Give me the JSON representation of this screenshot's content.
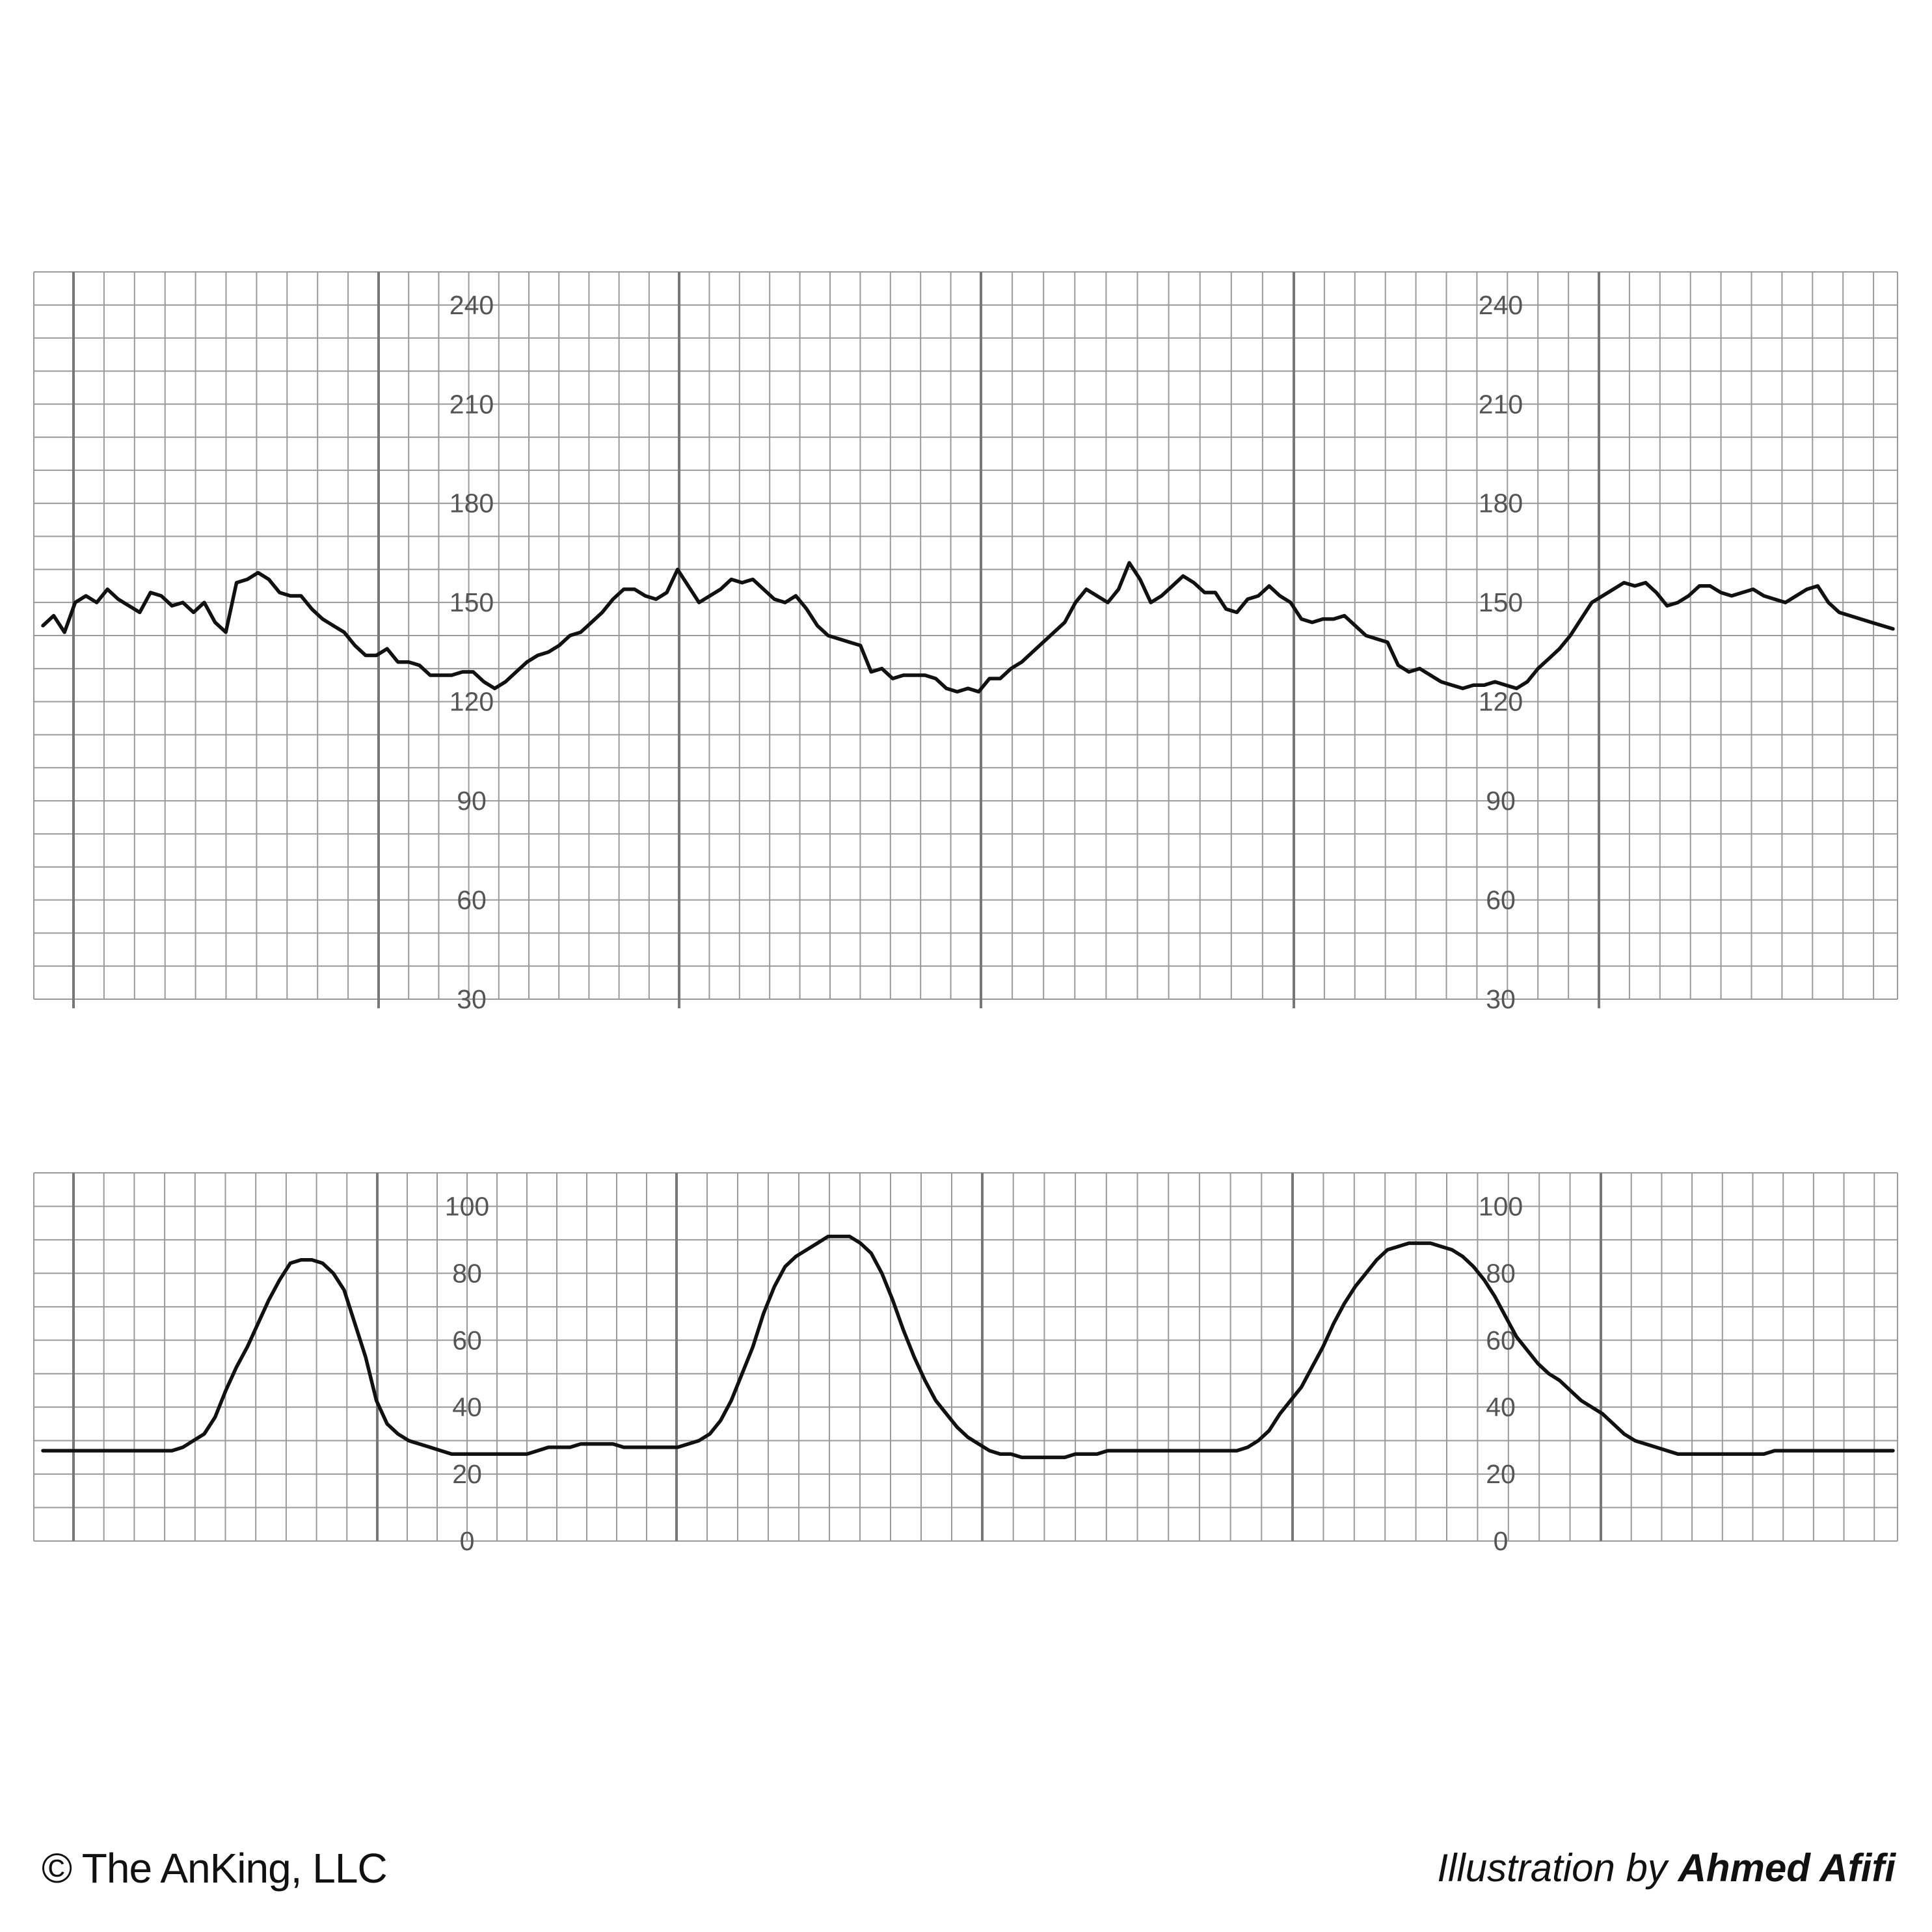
{
  "chart_data": [
    {
      "type": "line",
      "title": "",
      "xlabel": "",
      "ylabel": "",
      "ylim": [
        30,
        250
      ],
      "yticks": [
        30,
        60,
        90,
        120,
        150,
        180,
        210,
        240
      ],
      "grid": true,
      "series": [
        {
          "x": [
            0,
            1,
            2,
            3,
            4,
            5,
            6,
            7,
            8,
            9,
            10,
            11,
            12,
            13,
            14,
            15,
            16,
            17,
            18,
            19,
            20,
            21,
            22,
            23,
            24,
            25,
            26,
            27,
            28,
            29,
            30,
            31,
            32,
            33,
            34,
            35,
            36,
            37,
            38,
            39,
            40,
            41,
            42,
            43,
            44,
            45,
            46,
            47,
            48,
            49,
            50,
            51,
            52,
            53,
            54,
            55,
            56,
            57,
            58,
            59,
            60,
            61,
            62,
            63,
            64,
            65,
            66,
            67,
            68,
            69,
            70,
            71,
            72,
            73,
            74,
            75,
            76,
            77,
            78,
            79,
            80,
            81,
            82,
            83,
            84,
            85,
            86,
            87,
            88,
            89,
            90,
            91,
            92,
            93,
            94,
            95,
            96,
            97,
            98,
            99,
            100,
            101,
            102,
            103,
            104,
            105,
            106,
            107,
            108,
            109,
            110,
            111,
            112,
            113,
            114,
            115,
            116,
            117,
            118,
            119,
            120,
            121,
            122,
            123,
            124,
            125,
            126,
            127,
            128,
            129,
            130,
            131,
            132,
            133,
            134,
            135,
            136,
            137,
            138,
            139,
            140,
            141,
            142,
            143,
            144,
            145,
            146,
            147,
            148,
            149,
            150,
            151,
            152,
            153,
            154,
            155,
            156,
            157,
            158,
            159,
            160,
            161,
            162,
            163,
            164,
            165,
            166,
            167,
            168,
            169,
            170,
            171,
            172
          ],
          "values": [
            143,
            146,
            141,
            150,
            152,
            150,
            154,
            151,
            149,
            147,
            153,
            152,
            149,
            150,
            147,
            150,
            144,
            141,
            156,
            157,
            159,
            157,
            153,
            152,
            152,
            148,
            145,
            143,
            141,
            137,
            134,
            134,
            136,
            132,
            132,
            131,
            128,
            128,
            128,
            129,
            129,
            126,
            124,
            126,
            129,
            132,
            134,
            135,
            137,
            140,
            141,
            144,
            147,
            151,
            154,
            154,
            152,
            151,
            153,
            160,
            155,
            150,
            152,
            154,
            157,
            156,
            157,
            154,
            151,
            150,
            152,
            148,
            143,
            140,
            139,
            138,
            137,
            129,
            130,
            127,
            128,
            128,
            128,
            127,
            124,
            123,
            124,
            123,
            127,
            127,
            130,
            132,
            135,
            138,
            141,
            144,
            150,
            154,
            152,
            150,
            154,
            162,
            157,
            150,
            152,
            155,
            158,
            156,
            153,
            153,
            148,
            147,
            151,
            152,
            155,
            152,
            150,
            145,
            144,
            145,
            145,
            146,
            143,
            140,
            139,
            138,
            131,
            129,
            130,
            128,
            126,
            125,
            124,
            125,
            125,
            126,
            125,
            124,
            126,
            130,
            133,
            136,
            140,
            145,
            150,
            152,
            154,
            156,
            155,
            156,
            153,
            149,
            150,
            152,
            155,
            155,
            153,
            152,
            153,
            154,
            152,
            151,
            150,
            152,
            154,
            155,
            150,
            147,
            146,
            145,
            144,
            143,
            142
          ]
        }
      ]
    },
    {
      "type": "line",
      "title": "",
      "xlabel": "",
      "ylabel": "",
      "ylim": [
        0,
        110
      ],
      "yticks": [
        0,
        20,
        40,
        60,
        80,
        100
      ],
      "grid": true,
      "series": [
        {
          "x": [
            0,
            1,
            2,
            3,
            4,
            5,
            6,
            7,
            8,
            9,
            10,
            11,
            12,
            13,
            14,
            15,
            16,
            17,
            18,
            19,
            20,
            21,
            22,
            23,
            24,
            25,
            26,
            27,
            28,
            29,
            30,
            31,
            32,
            33,
            34,
            35,
            36,
            37,
            38,
            39,
            40,
            41,
            42,
            43,
            44,
            45,
            46,
            47,
            48,
            49,
            50,
            51,
            52,
            53,
            54,
            55,
            56,
            57,
            58,
            59,
            60,
            61,
            62,
            63,
            64,
            65,
            66,
            67,
            68,
            69,
            70,
            71,
            72,
            73,
            74,
            75,
            76,
            77,
            78,
            79,
            80,
            81,
            82,
            83,
            84,
            85,
            86,
            87,
            88,
            89,
            90,
            91,
            92,
            93,
            94,
            95,
            96,
            97,
            98,
            99,
            100,
            101,
            102,
            103,
            104,
            105,
            106,
            107,
            108,
            109,
            110,
            111,
            112,
            113,
            114,
            115,
            116,
            117,
            118,
            119,
            120,
            121,
            122,
            123,
            124,
            125,
            126,
            127,
            128,
            129,
            130,
            131,
            132,
            133,
            134,
            135,
            136,
            137,
            138,
            139,
            140,
            141,
            142,
            143,
            144,
            145,
            146,
            147,
            148,
            149,
            150,
            151,
            152,
            153,
            154,
            155,
            156,
            157,
            158,
            159,
            160,
            161,
            162,
            163,
            164,
            165,
            166,
            167,
            168,
            169,
            170,
            171,
            172
          ],
          "values": [
            27,
            27,
            27,
            27,
            27,
            27,
            27,
            27,
            27,
            27,
            27,
            27,
            27,
            28,
            30,
            32,
            37,
            45,
            52,
            58,
            65,
            72,
            78,
            83,
            84,
            84,
            83,
            80,
            75,
            65,
            55,
            42,
            35,
            32,
            30,
            29,
            28,
            27,
            26,
            26,
            26,
            26,
            26,
            26,
            26,
            26,
            27,
            28,
            28,
            28,
            29,
            29,
            29,
            29,
            28,
            28,
            28,
            28,
            28,
            28,
            29,
            30,
            32,
            36,
            42,
            50,
            58,
            68,
            76,
            82,
            85,
            87,
            89,
            91,
            91,
            91,
            89,
            86,
            80,
            72,
            63,
            55,
            48,
            42,
            38,
            34,
            31,
            29,
            27,
            26,
            26,
            25,
            25,
            25,
            25,
            25,
            26,
            26,
            26,
            27,
            27,
            27,
            27,
            27,
            27,
            27,
            27,
            27,
            27,
            27,
            27,
            27,
            28,
            30,
            33,
            38,
            42,
            46,
            52,
            58,
            65,
            71,
            76,
            80,
            84,
            87,
            88,
            89,
            89,
            89,
            88,
            87,
            85,
            82,
            78,
            73,
            67,
            61,
            57,
            53,
            50,
            48,
            45,
            42,
            40,
            38,
            35,
            32,
            30,
            29,
            28,
            27,
            26,
            26,
            26,
            26,
            26,
            26,
            26,
            26,
            26,
            27,
            27,
            27,
            27,
            27,
            27,
            27,
            27,
            27,
            27,
            27,
            27
          ]
        }
      ]
    }
  ],
  "footer": {
    "copyright": "© The AnKing, LLC",
    "illustration_prefix": "Illustration by",
    "illustrator": "Ahmed Afifi"
  },
  "colors": {
    "trace": "#111111",
    "grid_minor": "#9a9a9a",
    "grid_major": "#777777",
    "tick_label": "#555555"
  }
}
